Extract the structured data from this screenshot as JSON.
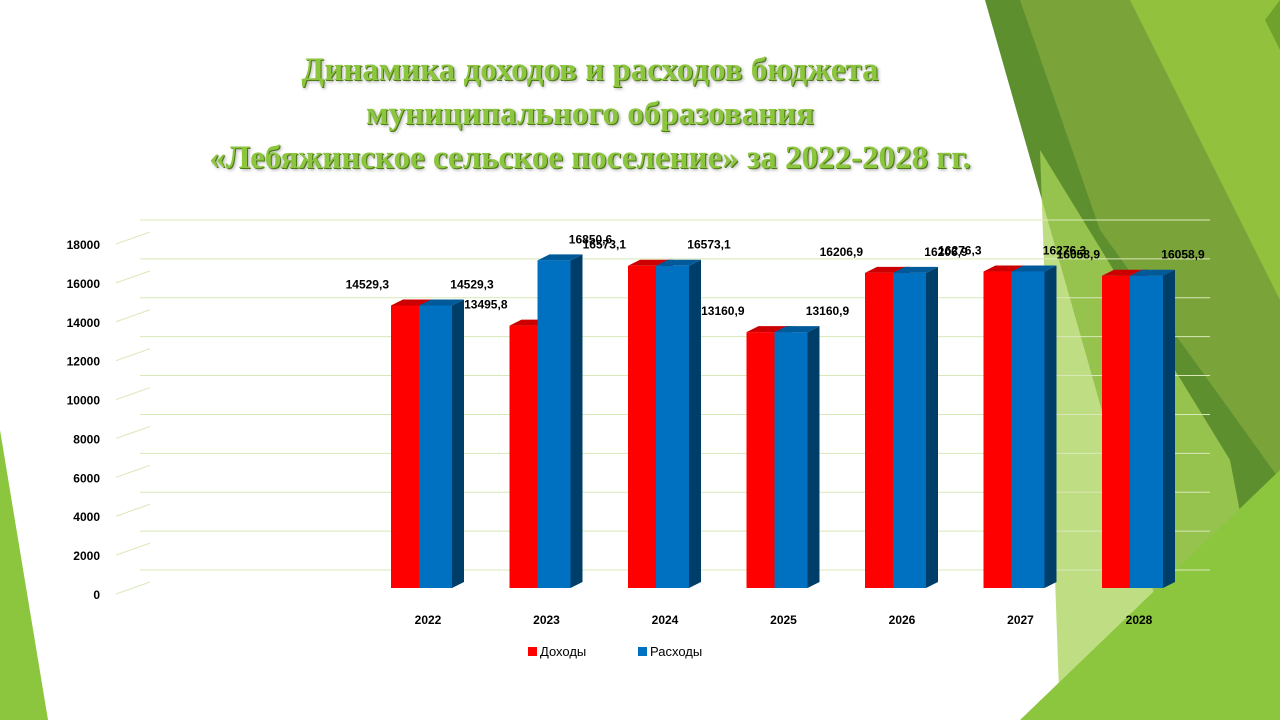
{
  "colors": {
    "income": "#ff0000",
    "expense": "#0070c0",
    "title": "#8cc63f",
    "grid": "#d9e8b8"
  },
  "chart_data": {
    "type": "bar",
    "title": "Динамика доходов и расходов бюджета муниципального образования «Лебяжинское сельское поселение» за 2022-2028 гг.",
    "title_lines": [
      "Динамика доходов и расходов бюджета",
      "муниципального образования",
      "«Лебяжинское сельское поселение» за 2022-2028 гг."
    ],
    "categories": [
      "2022",
      "2023",
      "2024",
      "2025",
      "2026",
      "2027",
      "2028"
    ],
    "series": [
      {
        "name": "Доходы",
        "values": [
          14529.3,
          13495.8,
          16573.1,
          13160.9,
          16206.9,
          16276.3,
          16058.9
        ],
        "labels": [
          "14529,3",
          "13495,8",
          "16573,1",
          "13160,9",
          "16206,9",
          "16276,3",
          "16058,9"
        ]
      },
      {
        "name": "Расходы",
        "values": [
          14529.3,
          16850.6,
          16573.1,
          13160.9,
          16206.9,
          16276.3,
          16058.9
        ],
        "labels": [
          "14529,3",
          "16850,6",
          "16573,1",
          "13160,9",
          "16206,9",
          "16276,3",
          "16058,9"
        ]
      }
    ],
    "ylim": [
      0,
      18000
    ],
    "yticks": [
      "0",
      "2000",
      "4000",
      "6000",
      "8000",
      "10000",
      "12000",
      "14000",
      "16000",
      "18000"
    ],
    "xlabel": "",
    "ylabel": "",
    "grid": true,
    "legend": "bottom"
  }
}
